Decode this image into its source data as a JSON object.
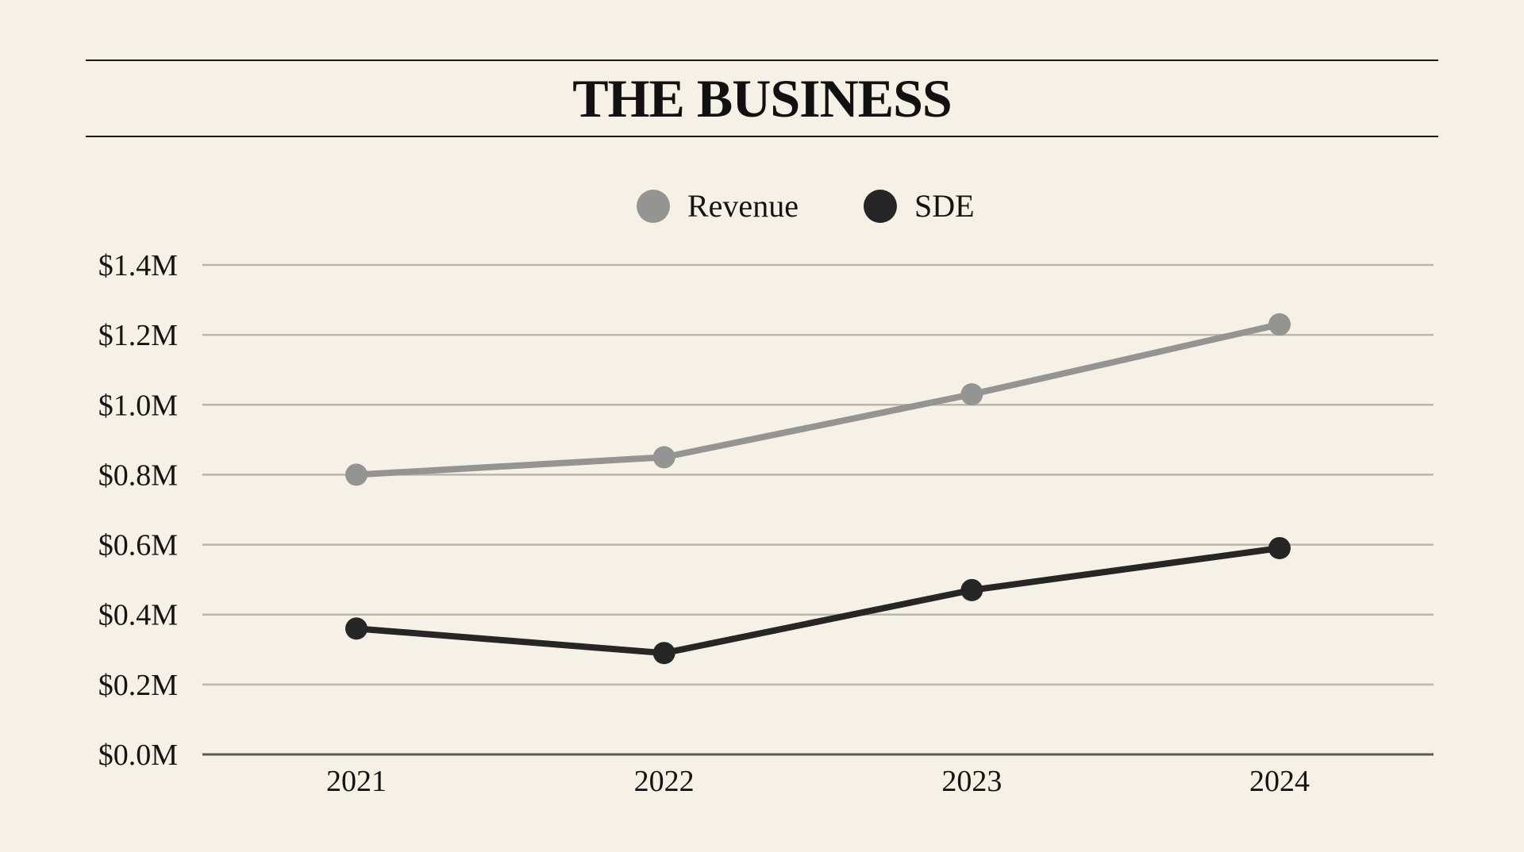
{
  "header": {
    "title": "THE BUSINESS"
  },
  "chart_data": {
    "type": "line",
    "title": "THE BUSINESS",
    "categories": [
      "2021",
      "2022",
      "2023",
      "2024"
    ],
    "series": [
      {
        "name": "Revenue",
        "color": "#949592",
        "values": [
          0.8,
          0.85,
          1.03,
          1.23
        ]
      },
      {
        "name": "SDE",
        "color": "#262626",
        "values": [
          0.36,
          0.29,
          0.47,
          0.59
        ]
      }
    ],
    "y_ticks": [
      0.0,
      0.2,
      0.4,
      0.6,
      0.8,
      1.0,
      1.2,
      1.4
    ],
    "y_tick_labels": [
      "$0.0M",
      "$0.2M",
      "$0.4M",
      "$0.6M",
      "$0.8M",
      "$1.0M",
      "$1.2M",
      "$1.4M"
    ],
    "ylim": [
      0,
      1.4
    ],
    "xlabel": "",
    "ylabel": "",
    "grid": true,
    "legend_position": "top-center",
    "gridline_color": "#b9b6ab",
    "axis_color": "#5a5a56"
  }
}
